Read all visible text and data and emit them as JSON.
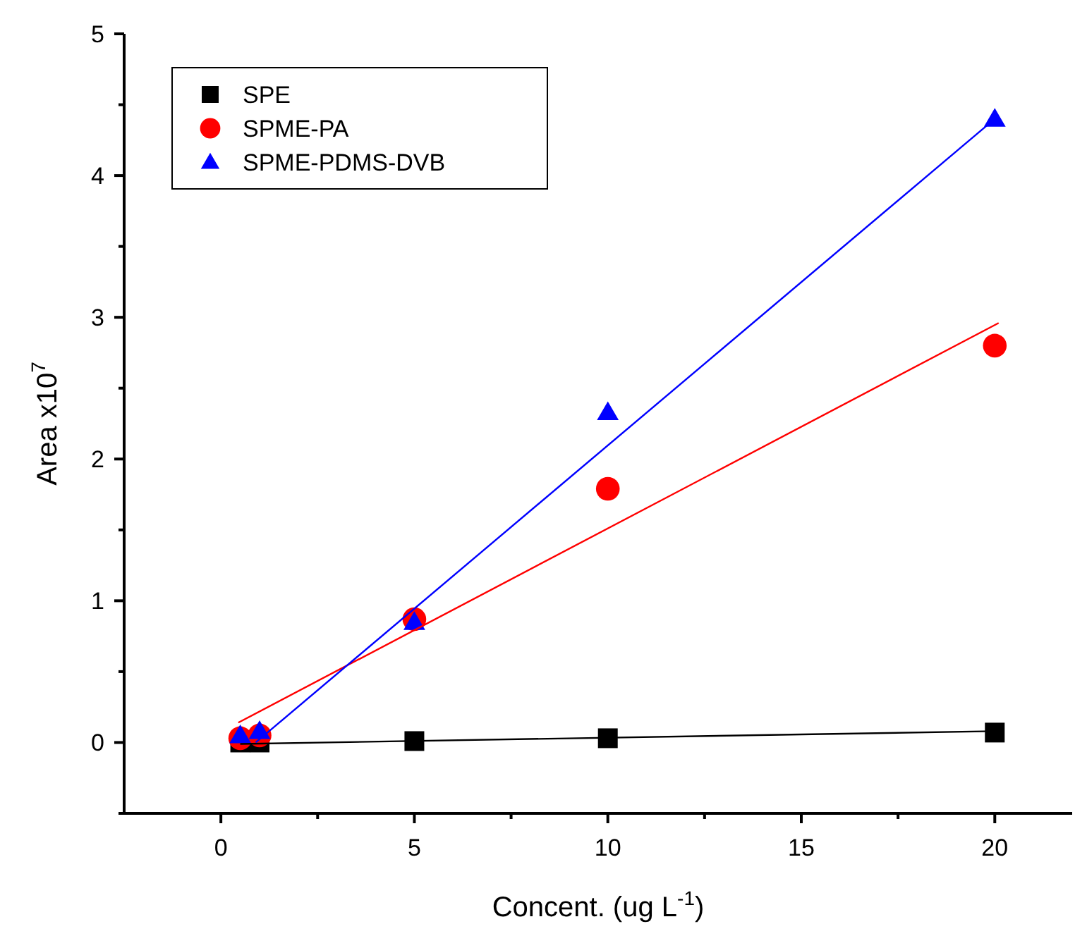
{
  "chart_data": {
    "type": "scatter",
    "xlabel": "Concent. (ug L$^{-1}$)",
    "ylabel": "Area x10$^{7}$",
    "xlim": [
      -2.5,
      22
    ],
    "ylim": [
      -0.5,
      5
    ],
    "xticks": [
      0,
      {
        "value": 2.5,
        "label": null
      },
      5,
      {
        "value": 7.5,
        "label": null
      },
      10,
      {
        "value": 12.5,
        "label": null
      },
      15,
      {
        "value": 17.5,
        "label": null
      },
      20
    ],
    "yticks": [
      {
        "value": -0.5,
        "label": null
      },
      0,
      {
        "value": 0.5,
        "label": null
      },
      1,
      {
        "value": 1.5,
        "label": null
      },
      2,
      {
        "value": 2.5,
        "label": null
      },
      3,
      {
        "value": 3.5,
        "label": null
      },
      4,
      {
        "value": 4.5,
        "label": null
      },
      5
    ],
    "x": [
      0.5,
      1,
      5,
      10,
      20
    ],
    "legend": "top left",
    "grid": false,
    "series": [
      {
        "name": "SPE",
        "color": "#000000",
        "marker": "square",
        "values": [
          0,
          0,
          0.01,
          0.03,
          0.07
        ]
      },
      {
        "name": "SPME-PA",
        "color": "#ff0000",
        "marker": "circle",
        "values": [
          0.03,
          0.05,
          0.87,
          1.79,
          2.8
        ]
      },
      {
        "name": "SPME-PDMS-DVB",
        "color": "#0000ff",
        "marker": "triangle",
        "values": [
          0.05,
          0.08,
          0.85,
          2.33,
          4.4
        ]
      },
      {
        "type": "line",
        "color": "#000000",
        "marker": "none",
        "x": [
          0.5,
          20
        ],
        "values": [
          -0.01,
          0.08
        ]
      },
      {
        "type": "line",
        "color": "#ff0000",
        "marker": "none",
        "x": [
          0.45,
          20.1
        ],
        "values": [
          0.14,
          2.96
        ]
      },
      {
        "type": "line",
        "color": "#0000ff",
        "marker": "none",
        "x": [
          0.9,
          20
        ],
        "values": [
          0,
          4.4
        ]
      }
    ]
  }
}
